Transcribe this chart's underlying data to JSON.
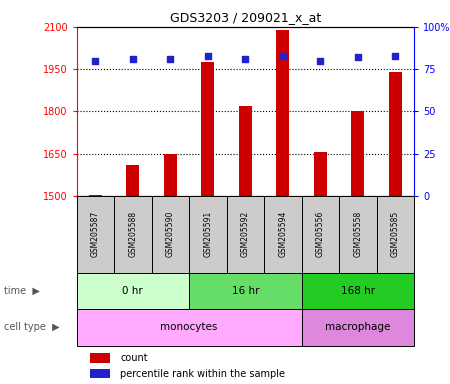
{
  "title": "GDS3203 / 209021_x_at",
  "samples": [
    "GSM205587",
    "GSM205588",
    "GSM205590",
    "GSM205591",
    "GSM205592",
    "GSM205594",
    "GSM205556",
    "GSM205558",
    "GSM205585"
  ],
  "counts": [
    1503,
    1608,
    1648,
    1975,
    1820,
    2090,
    1655,
    1800,
    1940
  ],
  "percentile_ranks": [
    80,
    81,
    81,
    83,
    81,
    83,
    80,
    82,
    83
  ],
  "ylim_left": [
    1500,
    2100
  ],
  "ylim_right": [
    0,
    100
  ],
  "yticks_left": [
    1500,
    1650,
    1800,
    1950,
    2100
  ],
  "yticks_right": [
    0,
    25,
    50,
    75,
    100
  ],
  "bar_color": "#cc0000",
  "dot_color": "#2222cc",
  "bar_width": 0.35,
  "time_groups": [
    {
      "label": "0 hr",
      "start": 0,
      "end": 3,
      "color": "#ccffcc"
    },
    {
      "label": "16 hr",
      "start": 3,
      "end": 6,
      "color": "#66dd66"
    },
    {
      "label": "168 hr",
      "start": 6,
      "end": 9,
      "color": "#22cc22"
    }
  ],
  "cell_type_groups": [
    {
      "label": "monocytes",
      "start": 0,
      "end": 6,
      "color": "#ffaaff"
    },
    {
      "label": "macrophage",
      "start": 6,
      "end": 9,
      "color": "#dd88dd"
    }
  ],
  "time_label": "time",
  "cell_type_label": "cell type",
  "legend_count_label": "count",
  "legend_percentile_label": "percentile rank within the sample",
  "sample_bg_color": "#cccccc",
  "left_label_color": "#888888"
}
